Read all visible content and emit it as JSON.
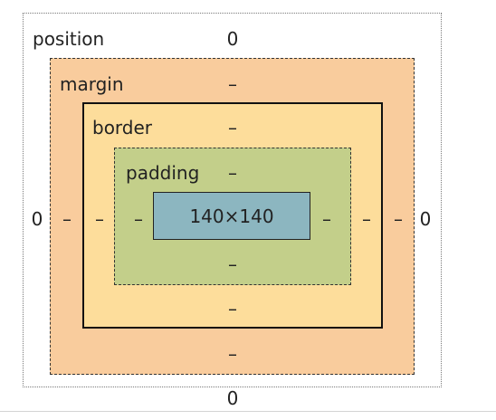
{
  "box_model": {
    "position": {
      "label": "position",
      "top": "0",
      "right": "0",
      "bottom": "0",
      "left": "0"
    },
    "margin": {
      "label": "margin",
      "top": "–",
      "right": "–",
      "bottom": "–",
      "left": "–"
    },
    "border": {
      "label": "border",
      "top": "–",
      "right": "–",
      "bottom": "–",
      "left": "–"
    },
    "padding": {
      "label": "padding",
      "top": "–",
      "right": "–",
      "bottom": "–",
      "left": "–"
    },
    "content": {
      "size": "140×140"
    }
  },
  "colors": {
    "margin": "#f9cc9d",
    "border": "#fddd9b",
    "padding": "#c3cf8a",
    "content": "#8cb6c0"
  }
}
